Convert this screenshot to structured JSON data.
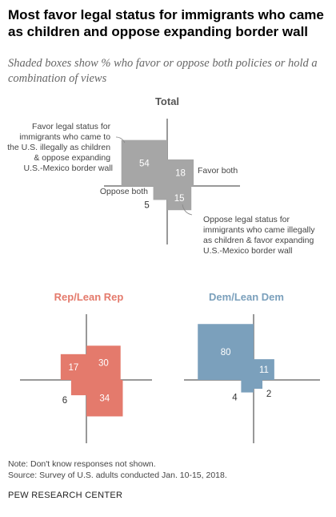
{
  "title": "Most favor legal status for immigrants who came as children and oppose expanding border wall",
  "subtitle": "Shaded boxes show % who favor or oppose both policies or hold a combination of views",
  "chart_data": [
    {
      "type": "quadrant_area",
      "title": "Total",
      "color": "#a6a6a6",
      "title_color": "#555555",
      "quadrants": {
        "favor_legal_oppose_wall": 54,
        "favor_both": 18,
        "oppose_both": 5,
        "oppose_legal_favor_wall": 15
      },
      "annotations": {
        "top_left": [
          "Favor legal status for",
          "immigrants who came to",
          "the U.S. illegally as children",
          "& oppose expanding",
          "U.S.-Mexico border wall"
        ],
        "top_right": "Favor both",
        "bottom_left": "Oppose both",
        "bottom_right": [
          "Oppose legal status for",
          "immigrants who came illegally",
          "as children & favor expanding",
          "U.S.-Mexico border wall"
        ]
      }
    },
    {
      "type": "quadrant_area",
      "title": "Rep/Lean Rep",
      "color": "#e47a6c",
      "title_color": "#e47a6c",
      "quadrants": {
        "favor_legal_oppose_wall": 17,
        "favor_both": 30,
        "oppose_both": 6,
        "oppose_legal_favor_wall": 34
      }
    },
    {
      "type": "quadrant_area",
      "title": "Dem/Lean Dem",
      "color": "#7ba0bc",
      "title_color": "#7ba0bc",
      "quadrants": {
        "favor_legal_oppose_wall": 80,
        "favor_both": 11,
        "oppose_both": 4,
        "oppose_legal_favor_wall": 2
      }
    }
  ],
  "footer": {
    "note": "Note: Don't know responses not shown.",
    "source": "Source: Survey of U.S. adults conducted Jan. 10-15, 2018.",
    "brand": "PEW RESEARCH CENTER"
  }
}
